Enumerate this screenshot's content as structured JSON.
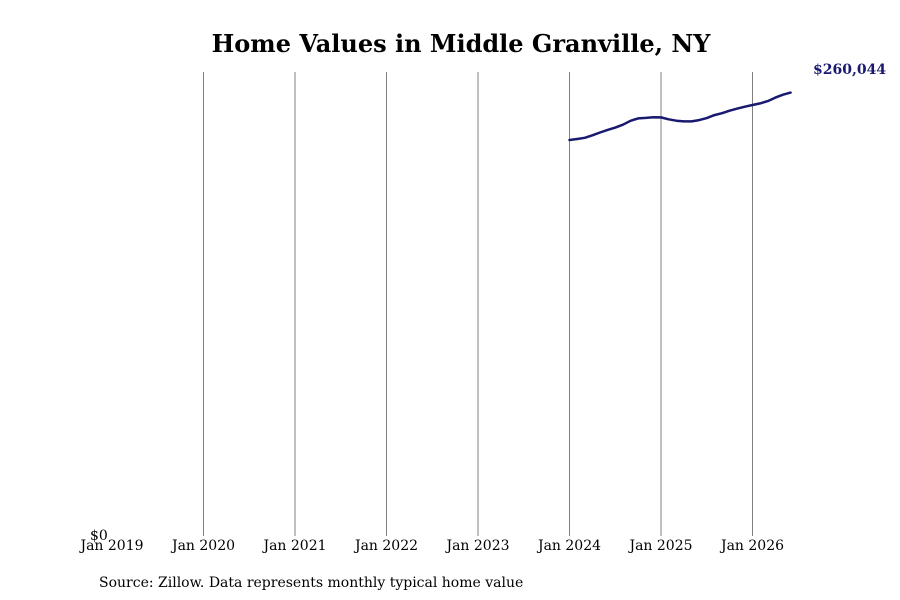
{
  "chart_data": {
    "type": "line",
    "title": "Home Values in Middle Granville, NY",
    "xlabel": "",
    "ylabel": "",
    "x_ticks": [
      "Jan 2019",
      "Jan 2020",
      "Jan 2021",
      "Jan 2022",
      "Jan 2023",
      "Jan 2024",
      "Jan 2025",
      "Jan 2026"
    ],
    "y_ticks": [
      "$0"
    ],
    "ylim": [
      0,
      266000
    ],
    "xlim": [
      "2019-01",
      "2026-08"
    ],
    "grid": "vertical",
    "line_color": "#191970",
    "series": [
      {
        "x": [
          "2024-01",
          "2024-02",
          "2024-03",
          "2024-04",
          "2024-05",
          "2024-06",
          "2024-07",
          "2024-08",
          "2024-09",
          "2024-10",
          "2024-11",
          "2024-12",
          "2025-01",
          "2025-02",
          "2025-03",
          "2025-04",
          "2025-05",
          "2025-06",
          "2025-07",
          "2025-08",
          "2025-09",
          "2025-10",
          "2025-11",
          "2025-12",
          "2026-01",
          "2026-02",
          "2026-03",
          "2026-04",
          "2026-05",
          "2026-06"
        ],
        "values": [
          227000,
          227600,
          228300,
          229700,
          231300,
          232800,
          234100,
          235800,
          238000,
          239400,
          239700,
          240100,
          240000,
          238900,
          238100,
          237700,
          237700,
          238400,
          239600,
          241300,
          242400,
          243800,
          245000,
          246100,
          247100,
          248000,
          249300,
          251300,
          253000,
          254200
        ]
      }
    ],
    "end_label": "$260,044"
  },
  "footer": {
    "source": "Source: Zillow. Data represents monthly typical home value"
  }
}
